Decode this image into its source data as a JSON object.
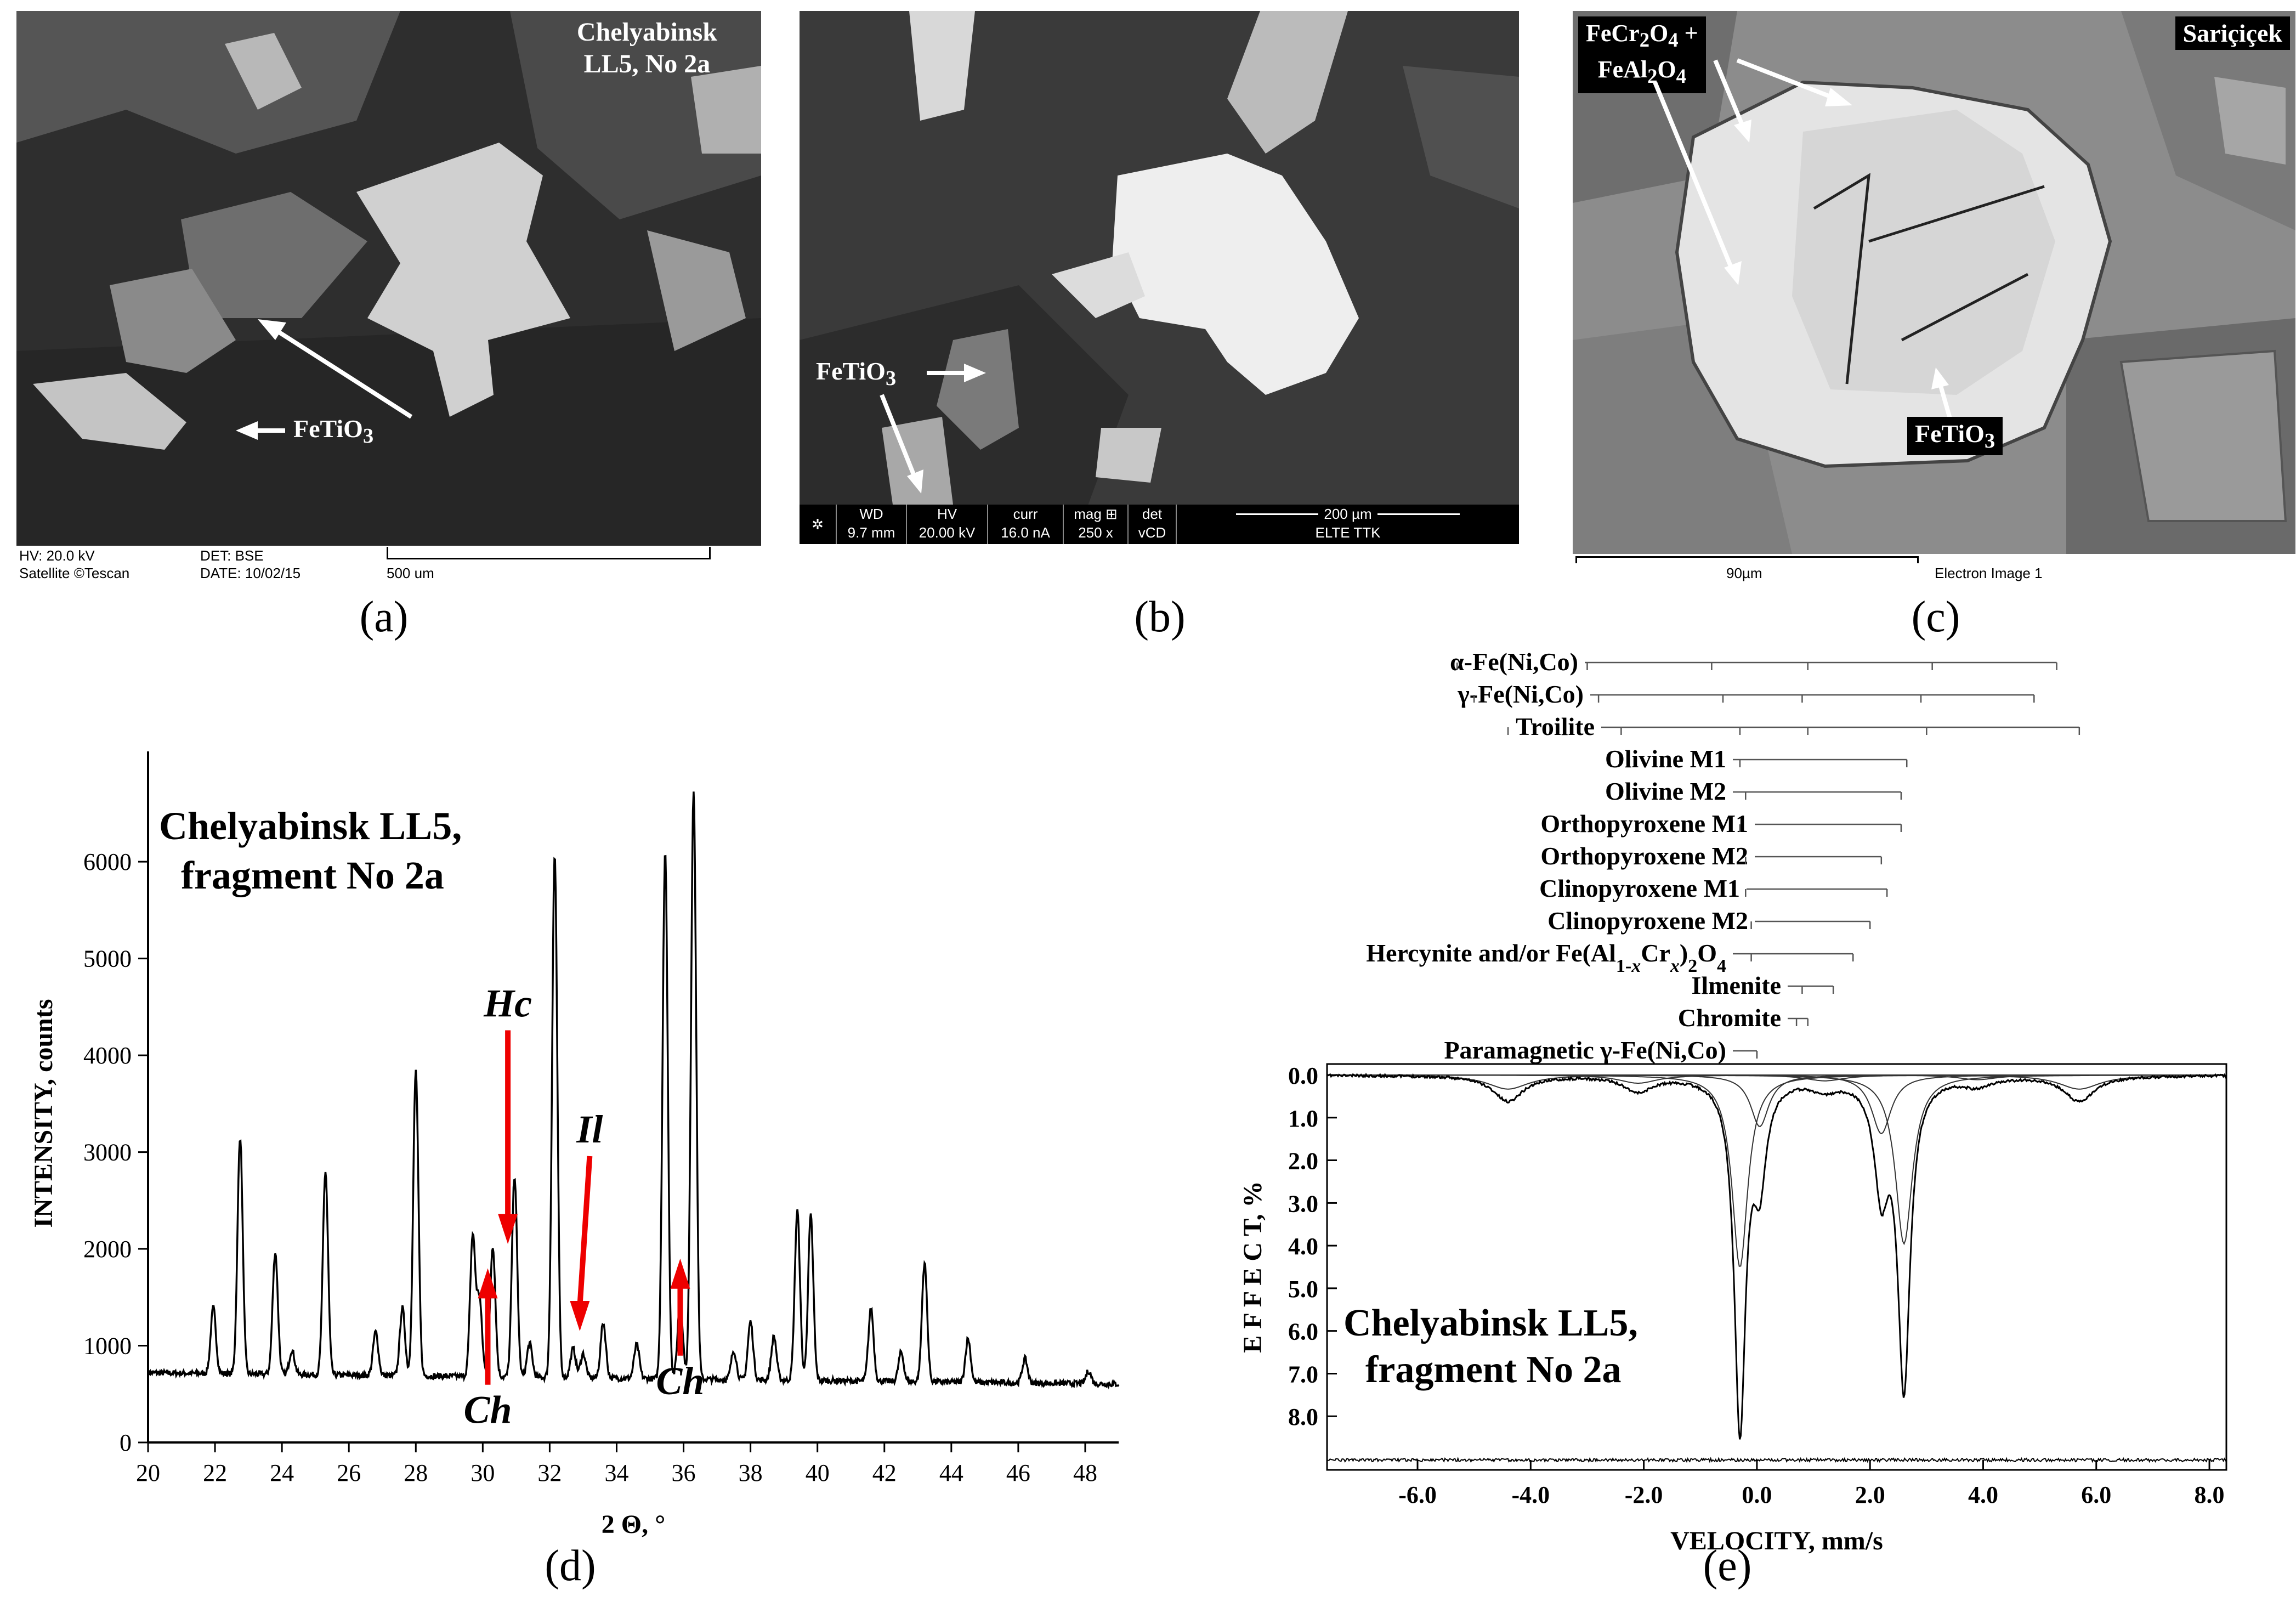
{
  "panels": {
    "a": {
      "caption": "(a)",
      "title_line1": "Chelyabinsk",
      "title_line2": "LL5, No 2a",
      "mineral_label": "FeTiO3",
      "info": {
        "hv": "HV: 20.0 kV",
        "det": "DET: BSE",
        "device": "Satellite ©Tescan",
        "date": "DATE: 10/02/15",
        "scale": "500 um"
      }
    },
    "b": {
      "caption": "(b)",
      "mineral_label": "FeTiO3",
      "info": {
        "wd_label": "WD",
        "wd_value": "9.7 mm",
        "hv_label": "HV",
        "hv_value": "20.00 kV",
        "curr_label": "curr",
        "curr_value": "16.0 nA",
        "mag_label": "mag ⊞",
        "mag_value": "250 x",
        "det_label": "det",
        "det_value": "vCD",
        "scale": "200 µm",
        "institution": "ELTE TTK"
      }
    },
    "c": {
      "caption": "(c)",
      "title": "Sariçiçek",
      "label_spinel_line1": "FeCr2O4 +",
      "label_spinel_line2": "FeAl2O4",
      "mineral_label": "FeTiO3",
      "scale": "90µm",
      "image_type": "Electron Image 1"
    },
    "d": {
      "caption": "(d)",
      "title_line1": "Chelyabinsk LL5,",
      "title_line2": "fragment No 2a"
    },
    "e": {
      "caption": "(e)",
      "title_line1": "Chelyabinsk LL5,",
      "title_line2": "fragment No 2a",
      "components": [
        {
          "name": "α-Fe(Ni,Co)"
        },
        {
          "name": "γ-Fe(Ni,Co)"
        },
        {
          "name": "Troilite"
        },
        {
          "name": "Olivine M1"
        },
        {
          "name": "Olivine M2"
        },
        {
          "name": "Orthopyroxene M1"
        },
        {
          "name": "Orthopyroxene M2"
        },
        {
          "name": "Clinopyroxene M1"
        },
        {
          "name": "Clinopyroxene M2"
        },
        {
          "name": "Hercynite and/or Fe(Al1-xCrx)2O4"
        },
        {
          "name": "Ilmenite"
        },
        {
          "name": "Chromite"
        },
        {
          "name": "Paramagnetic γ-Fe(Ni,Co)"
        }
      ]
    }
  },
  "chart_data": [
    {
      "type": "line",
      "panel": "d",
      "xlabel": "2 Θ, °",
      "ylabel": "INTENSITY, counts",
      "xlim": [
        20,
        49
      ],
      "ylim": [
        0,
        6800
      ],
      "xticks": [
        20,
        22,
        24,
        26,
        28,
        30,
        32,
        34,
        36,
        38,
        40,
        42,
        44,
        46,
        48
      ],
      "yticks": [
        0,
        1000,
        2000,
        3000,
        4000,
        5000,
        6000
      ],
      "peaks": [
        {
          "x": 21.95,
          "y": 1380
        },
        {
          "x": 22.75,
          "y": 3150
        },
        {
          "x": 23.8,
          "y": 1960
        },
        {
          "x": 24.3,
          "y": 950
        },
        {
          "x": 25.3,
          "y": 2800
        },
        {
          "x": 26.8,
          "y": 1150
        },
        {
          "x": 27.6,
          "y": 1400
        },
        {
          "x": 28.0,
          "y": 3850
        },
        {
          "x": 29.7,
          "y": 2150
        },
        {
          "x": 29.9,
          "y": 1500
        },
        {
          "x": 30.3,
          "y": 2050
        },
        {
          "x": 30.95,
          "y": 2780
        },
        {
          "x": 31.4,
          "y": 1050
        },
        {
          "x": 32.15,
          "y": 6100
        },
        {
          "x": 32.7,
          "y": 1000
        },
        {
          "x": 33.0,
          "y": 950
        },
        {
          "x": 33.6,
          "y": 1270
        },
        {
          "x": 34.6,
          "y": 1050
        },
        {
          "x": 35.45,
          "y": 6150
        },
        {
          "x": 35.9,
          "y": 1500
        },
        {
          "x": 36.3,
          "y": 6780
        },
        {
          "x": 37.5,
          "y": 1000
        },
        {
          "x": 38.0,
          "y": 1300
        },
        {
          "x": 38.7,
          "y": 1150
        },
        {
          "x": 39.4,
          "y": 2450
        },
        {
          "x": 39.8,
          "y": 2400
        },
        {
          "x": 41.6,
          "y": 1450
        },
        {
          "x": 42.5,
          "y": 1000
        },
        {
          "x": 43.2,
          "y": 1930
        },
        {
          "x": 44.5,
          "y": 1150
        },
        {
          "x": 46.2,
          "y": 950
        },
        {
          "x": 48.1,
          "y": 830
        }
      ],
      "annotations": [
        {
          "text": "Hc",
          "x": 30.75,
          "y_text": 4400,
          "y_tip": 2050,
          "direction": "down"
        },
        {
          "text": "Il",
          "x": 32.9,
          "y_text": 3100,
          "y_tip": 1150,
          "direction": "down"
        },
        {
          "text": "Ch",
          "x": 30.15,
          "y_text": 200,
          "y_tip": 1800,
          "direction": "up"
        },
        {
          "text": "Ch",
          "x": 35.9,
          "y_text": 500,
          "y_tip": 1900,
          "direction": "up"
        }
      ]
    },
    {
      "type": "line",
      "panel": "e",
      "xlabel": "VELOCITY, mm/s",
      "ylabel": "E F F E C T, %",
      "xlim": [
        -7.6,
        8.3
      ],
      "ylim": [
        0,
        9.0
      ],
      "xticks": [
        -6.0,
        -4.0,
        -2.0,
        0.0,
        2.0,
        4.0,
        6.0,
        8.0
      ],
      "xtick_labels": [
        "-6.0",
        "-4.0",
        "-2.0",
        "0.0",
        "2.0",
        "4.0",
        "6.0",
        "8.0"
      ],
      "yticks": [
        0.0,
        1.0,
        2.0,
        3.0,
        4.0,
        5.0,
        6.0,
        7.0,
        8.0
      ],
      "ytick_labels": [
        "0.0",
        "1.0",
        "2.0",
        "3.0",
        "4.0",
        "5.0",
        "6.0",
        "7.0",
        "8.0"
      ],
      "dips": [
        {
          "x": -4.4,
          "depth": 0.6,
          "w": 0.32
        },
        {
          "x": -2.1,
          "depth": 0.35,
          "w": 0.3
        },
        {
          "x": -0.3,
          "depth": 8.2,
          "w": 0.12
        },
        {
          "x": 0.05,
          "depth": 2.2,
          "w": 0.14
        },
        {
          "x": 2.2,
          "depth": 2.5,
          "w": 0.15
        },
        {
          "x": 2.6,
          "depth": 7.2,
          "w": 0.13
        },
        {
          "x": 1.2,
          "depth": 0.25,
          "w": 0.3
        },
        {
          "x": 3.9,
          "depth": 0.2,
          "w": 0.3
        },
        {
          "x": 5.7,
          "depth": 0.6,
          "w": 0.32
        }
      ],
      "component_sextets": [
        {
          "lines": [
            -5.3,
            -3.0,
            -0.8,
            0.9,
            3.1,
            5.3
          ]
        },
        {
          "lines": [
            -5.0,
            -2.8,
            -0.6,
            0.8,
            2.9,
            4.9
          ]
        },
        {
          "lines": [
            -4.4,
            -2.4,
            -0.3,
            0.9,
            3.0,
            5.7
          ]
        }
      ],
      "component_doublets": [
        {
          "lines": [
            -0.3,
            2.65
          ]
        },
        {
          "lines": [
            -0.2,
            2.55
          ]
        },
        {
          "lines": [
            -0.3,
            2.55
          ]
        },
        {
          "lines": [
            -0.2,
            2.2
          ]
        },
        {
          "lines": [
            -0.2,
            2.3
          ]
        },
        {
          "lines": [
            -0.1,
            2.0
          ]
        },
        {
          "lines": [
            -0.1,
            1.7
          ]
        },
        {
          "lines": [
            0.8,
            1.35
          ]
        },
        {
          "lines": [
            0.7,
            0.9
          ]
        },
        {
          "lines": [
            0.0,
            0.0
          ]
        }
      ]
    }
  ]
}
